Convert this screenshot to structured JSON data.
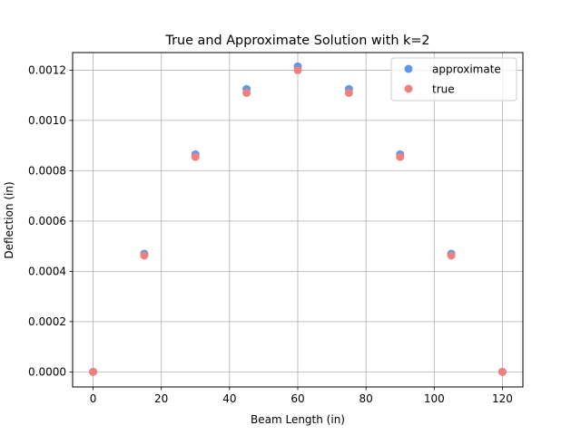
{
  "chart_data": {
    "type": "scatter",
    "title": "True and Approximate Solution with k=2",
    "xlabel": "Beam Length (in)",
    "ylabel": "Deflection (in)",
    "xlim": [
      -6,
      126
    ],
    "ylim": [
      -6e-05,
      0.00127
    ],
    "xticks": [
      0,
      20,
      40,
      60,
      80,
      100,
      120
    ],
    "xtick_labels": [
      "0",
      "20",
      "40",
      "60",
      "80",
      "100",
      "120"
    ],
    "yticks": [
      0.0,
      0.0002,
      0.0004,
      0.0006,
      0.0008,
      0.001,
      0.0012
    ],
    "ytick_labels": [
      "0.0000",
      "0.0002",
      "0.0004",
      "0.0006",
      "0.0008",
      "0.0010",
      "0.0012"
    ],
    "grid": true,
    "legend_position": "top-right",
    "series": [
      {
        "name": "approximate",
        "color": "#6495ED",
        "x": [
          0,
          15,
          30,
          45,
          60,
          75,
          90,
          105,
          120
        ],
        "y": [
          0.0,
          0.00047,
          0.000865,
          0.001125,
          0.001215,
          0.001125,
          0.000865,
          0.00047,
          0.0
        ]
      },
      {
        "name": "true",
        "color": "#F08080",
        "x": [
          0,
          15,
          30,
          45,
          60,
          75,
          90,
          105,
          120
        ],
        "y": [
          0.0,
          0.000463,
          0.000855,
          0.00111,
          0.0012,
          0.00111,
          0.000855,
          0.000463,
          0.0
        ]
      }
    ]
  }
}
